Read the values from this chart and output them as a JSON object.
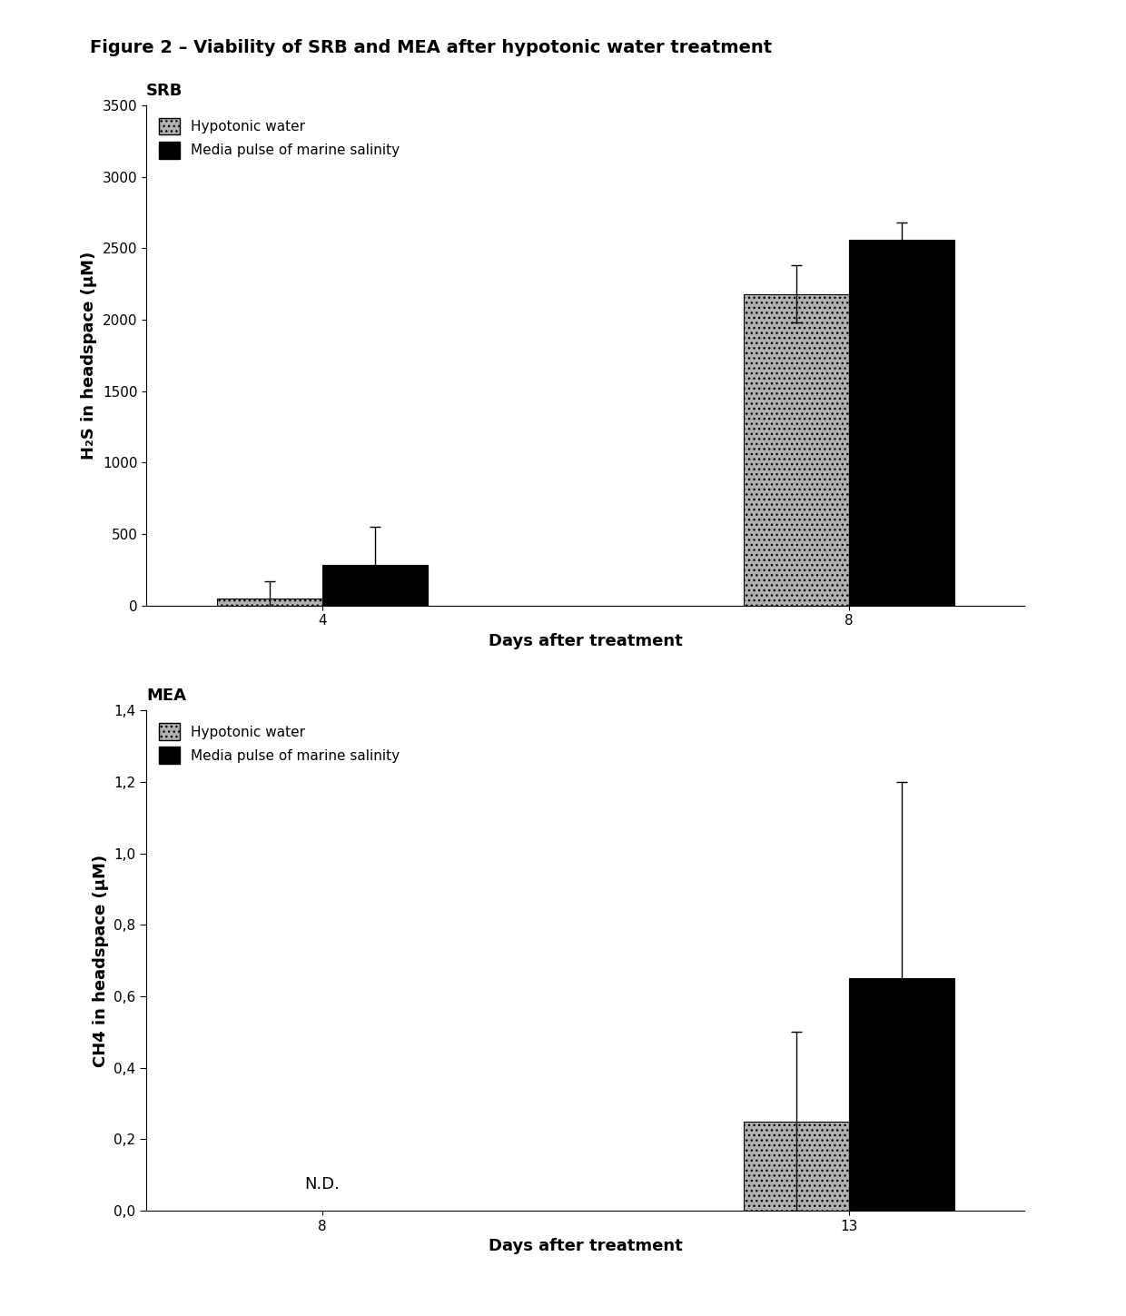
{
  "figure_title": "Figure 2 – Viability of SRB and MEA after hypotonic water treatment",
  "figure_title_fontsize": 14,
  "figure_title_fontweight": "bold",
  "srb": {
    "subtitle": "SRB",
    "subtitle_fontsize": 13,
    "subtitle_fontweight": "bold",
    "days": [
      4,
      8
    ],
    "hypotonic_values": [
      50,
      2180
    ],
    "hypotonic_errors": [
      120,
      200
    ],
    "marine_values": [
      280,
      2560
    ],
    "marine_errors": [
      270,
      120
    ],
    "ylabel": "H₂S in headspace (µM)",
    "xlabel": "Days after treatment",
    "ylim": [
      0,
      3500
    ],
    "yticks": [
      0,
      500,
      1000,
      1500,
      2000,
      2500,
      3000,
      3500
    ],
    "bar_width": 0.3,
    "hypotonic_color": "#b0b0b0",
    "marine_color": "#000000",
    "legend_hypotonic": "Hypotonic water",
    "legend_marine": "Media pulse of marine salinity"
  },
  "mea": {
    "subtitle": "MEA",
    "subtitle_fontsize": 13,
    "subtitle_fontweight": "bold",
    "days": [
      8,
      13
    ],
    "hypotonic_values": [
      0,
      0.25
    ],
    "hypotonic_errors": [
      0,
      0.25
    ],
    "marine_values": [
      0,
      0.65
    ],
    "marine_errors": [
      0,
      0.55
    ],
    "ylabel": "CH4 in headspace (µM)",
    "xlabel": "Days after treatment",
    "ylim": [
      0,
      1.4
    ],
    "yticks": [
      0.0,
      0.2,
      0.4,
      0.6,
      0.8,
      1.0,
      1.2,
      1.4
    ],
    "ytick_labels": [
      "0,0",
      "0,2",
      "0,4",
      "0,6",
      "0,8",
      "1,0",
      "1,2",
      "1,4"
    ],
    "bar_width": 0.3,
    "hypotonic_color": "#b0b0b0",
    "marine_color": "#000000",
    "nd_text": "N.D.",
    "legend_hypotonic": "Hypotonic water",
    "legend_marine": "Media pulse of marine salinity"
  },
  "axis_fontsize": 12,
  "tick_fontsize": 11,
  "label_fontsize": 13,
  "legend_fontsize": 11
}
